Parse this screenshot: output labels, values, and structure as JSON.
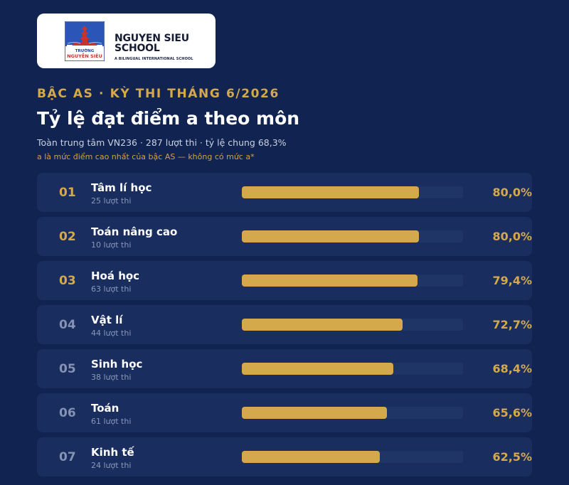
{
  "logo": {
    "crest_text_top": "TRƯỜNG",
    "crest_text_bottom": "NGUYỄN SIÊU",
    "name_line1": "NGUYEN SIEU",
    "name_line2": "SCHOOL",
    "tagline": "A BILINGUAL INTERNATIONAL SCHOOL",
    "colors": {
      "blue": "#1f3f99",
      "red": "#c8342b"
    }
  },
  "header": {
    "eyebrow": "BẬC AS · KỲ THI THÁNG 6/2026",
    "title": "Tỷ lệ đạt điểm a theo môn",
    "subtitle": "Toàn trung tâm VN236 · 287 lượt thi · tỷ lệ chung 68,3%",
    "note": "a là mức điểm cao nhất của bậc AS — không có mức a*"
  },
  "colors": {
    "background": "#112451",
    "row": "#192e5f",
    "accent": "#d4a94c",
    "rank_muted": "#8592b3"
  },
  "chart_data": {
    "type": "bar",
    "orientation": "horizontal",
    "xlim": [
      0,
      100
    ],
    "rows": [
      {
        "rank": "01",
        "subject": "Tâm lí học",
        "count_label": "25 lượt thi",
        "value": 80.0,
        "value_label": "80,0%",
        "highlight": true
      },
      {
        "rank": "02",
        "subject": "Toán nâng cao",
        "count_label": "10 lượt thi",
        "value": 80.0,
        "value_label": "80,0%",
        "highlight": true
      },
      {
        "rank": "03",
        "subject": "Hoá học",
        "count_label": "63 lượt thi",
        "value": 79.4,
        "value_label": "79,4%",
        "highlight": true
      },
      {
        "rank": "04",
        "subject": "Vật lí",
        "count_label": "44 lượt thi",
        "value": 72.7,
        "value_label": "72,7%",
        "highlight": false
      },
      {
        "rank": "05",
        "subject": "Sinh học",
        "count_label": "38 lượt thi",
        "value": 68.4,
        "value_label": "68,4%",
        "highlight": false
      },
      {
        "rank": "06",
        "subject": "Toán",
        "count_label": "61 lượt thi",
        "value": 65.6,
        "value_label": "65,6%",
        "highlight": false
      },
      {
        "rank": "07",
        "subject": "Kinh tế",
        "count_label": "24 lượt thi",
        "value": 62.5,
        "value_label": "62,5%",
        "highlight": false
      }
    ]
  }
}
